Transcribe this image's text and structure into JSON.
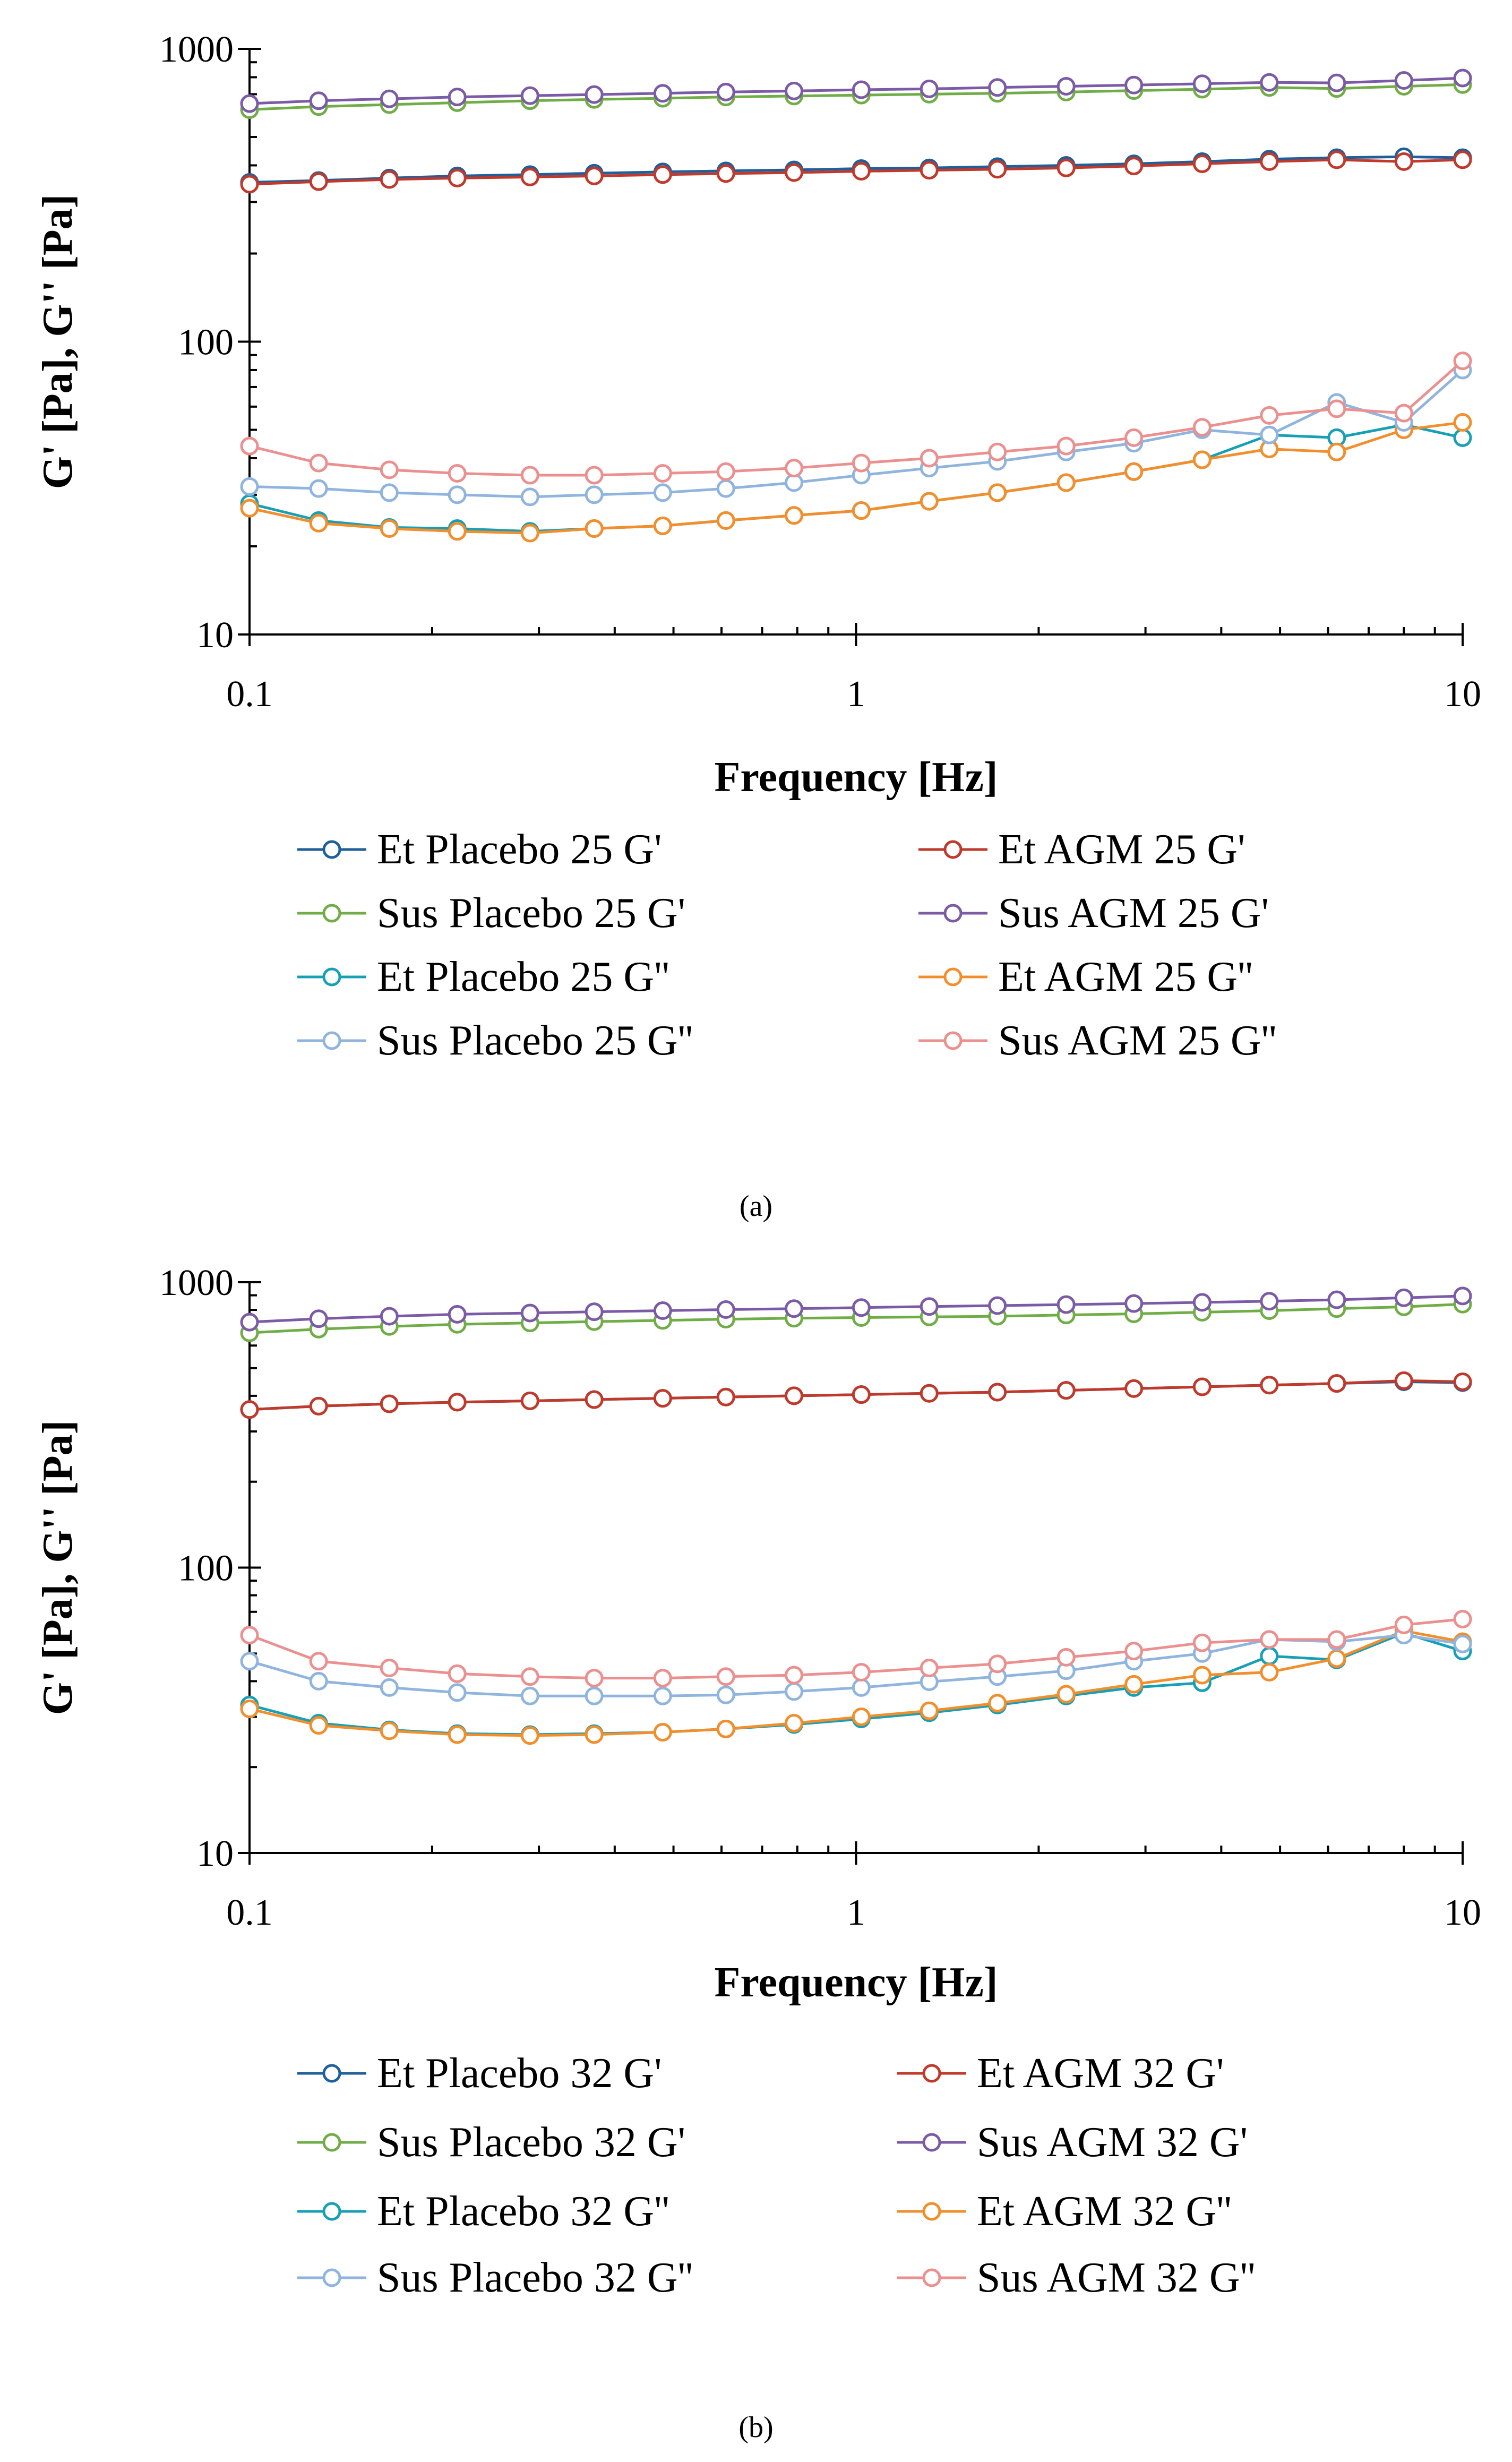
{
  "chart_data": [
    {
      "type": "line",
      "panel": "a",
      "caption": "(a)",
      "xlabel": "Frequency [Hz]",
      "ylabel": "G' [Pa], G'' [Pa]",
      "xscale": "log",
      "yscale": "log",
      "xlim": [
        0.1,
        10
      ],
      "ylim": [
        10,
        1000
      ],
      "xticks": [
        0.1,
        1,
        10
      ],
      "xtick_labels": [
        "0.1",
        "1",
        "10"
      ],
      "yticks": [
        10,
        100,
        1000
      ],
      "ytick_labels": [
        "10",
        "100",
        "1000"
      ],
      "grid": false,
      "legend_position": "bottom",
      "x": [
        0.1,
        0.13,
        0.17,
        0.22,
        0.29,
        0.37,
        0.48,
        0.61,
        0.79,
        1.02,
        1.32,
        1.71,
        2.22,
        2.87,
        3.72,
        4.8,
        6.2,
        8.0,
        10.0
      ],
      "series": [
        {
          "name": "Et Placebo 25 G'",
          "color": "#1f5f9a",
          "values": [
            350,
            355,
            362,
            368,
            372,
            376,
            380,
            383,
            386,
            390,
            392,
            396,
            400,
            405,
            412,
            420,
            425,
            428,
            425
          ]
        },
        {
          "name": "Et AGM 25 G'",
          "color": "#c0392b",
          "values": [
            345,
            352,
            358,
            362,
            365,
            368,
            372,
            375,
            378,
            382,
            385,
            388,
            392,
            398,
            405,
            412,
            418,
            412,
            418
          ]
        },
        {
          "name": "Sus Placebo 25 G'",
          "color": "#70ad47",
          "values": [
            620,
            635,
            645,
            655,
            665,
            672,
            678,
            685,
            690,
            695,
            700,
            705,
            712,
            720,
            728,
            738,
            732,
            745,
            755
          ]
        },
        {
          "name": "Sus AGM 25 G'",
          "color": "#7b5aa6",
          "values": [
            650,
            665,
            675,
            685,
            692,
            698,
            705,
            712,
            718,
            725,
            730,
            738,
            745,
            752,
            760,
            768,
            765,
            780,
            795
          ]
        },
        {
          "name": "Et Placebo 25 G''",
          "color": "#17a0b5",
          "values": [
            28,
            24.5,
            23.2,
            23.0,
            22.5,
            23.0,
            23.5,
            24.5,
            25.5,
            26.5,
            28.5,
            30.5,
            33,
            36,
            39.5,
            48,
            47,
            52,
            47
          ]
        },
        {
          "name": "Et AGM 25 G''",
          "color": "#f28e2b",
          "values": [
            27,
            24,
            23,
            22.5,
            22.2,
            23.0,
            23.5,
            24.5,
            25.5,
            26.5,
            28.5,
            30.5,
            33,
            36,
            39.5,
            43,
            42,
            50,
            53
          ]
        },
        {
          "name": "Sus Placebo 25 G''",
          "color": "#8fb4de",
          "values": [
            32,
            31.5,
            30.5,
            30,
            29.5,
            30,
            30.5,
            31.5,
            33,
            35,
            37,
            39,
            42,
            45,
            50,
            48,
            62,
            53,
            80
          ]
        },
        {
          "name": "Sus AGM 25 G''",
          "color": "#eb8f8f",
          "values": [
            44,
            38.5,
            36.5,
            35.5,
            35,
            35,
            35.5,
            36,
            37,
            38.5,
            40,
            42,
            44,
            47,
            51,
            56,
            59,
            57,
            86
          ]
        }
      ]
    },
    {
      "type": "line",
      "panel": "b",
      "caption": "(b)",
      "xlabel": "Frequency [Hz]",
      "ylabel": "G' [Pa], G'' [Pa]",
      "xscale": "log",
      "yscale": "log",
      "xlim": [
        0.1,
        10
      ],
      "ylim": [
        10,
        1000
      ],
      "xticks": [
        0.1,
        1,
        10
      ],
      "xtick_labels": [
        "0.1",
        "1",
        "10"
      ],
      "yticks": [
        10,
        100,
        1000
      ],
      "ytick_labels": [
        "10",
        "100",
        "1000"
      ],
      "grid": false,
      "legend_position": "bottom",
      "x": [
        0.1,
        0.13,
        0.17,
        0.22,
        0.29,
        0.37,
        0.48,
        0.61,
        0.79,
        1.02,
        1.32,
        1.71,
        2.22,
        2.87,
        3.72,
        4.8,
        6.2,
        8.0,
        10.0
      ],
      "series": [
        {
          "name": "Et Placebo 32 G'",
          "color": "#1f5f9a",
          "values": [
            358,
            368,
            375,
            380,
            384,
            388,
            392,
            396,
            400,
            404,
            408,
            412,
            418,
            424,
            430,
            436,
            442,
            448,
            445
          ]
        },
        {
          "name": "Et AGM 32 G'",
          "color": "#c0392b",
          "values": [
            358,
            368,
            375,
            380,
            384,
            388,
            392,
            396,
            400,
            404,
            408,
            412,
            418,
            424,
            430,
            436,
            442,
            452,
            448
          ]
        },
        {
          "name": "Sus Placebo 32 G'",
          "color": "#70ad47",
          "values": [
            665,
            685,
            700,
            712,
            720,
            728,
            735,
            742,
            748,
            752,
            756,
            760,
            768,
            775,
            785,
            795,
            808,
            820,
            838
          ]
        },
        {
          "name": "Sus AGM 32 G'",
          "color": "#7b5aa6",
          "values": [
            725,
            745,
            760,
            772,
            780,
            788,
            795,
            802,
            808,
            815,
            822,
            828,
            835,
            842,
            850,
            858,
            868,
            882,
            895
          ]
        },
        {
          "name": "Et Placebo 32 G''",
          "color": "#17a0b5",
          "values": [
            33,
            28.5,
            27,
            26.2,
            26,
            26.2,
            26.5,
            27.2,
            28.2,
            29.5,
            31,
            33,
            35.5,
            38,
            39.5,
            49,
            47.5,
            59,
            51
          ]
        },
        {
          "name": "Et AGM 32 G''",
          "color": "#f28e2b",
          "values": [
            32,
            28,
            26.8,
            26,
            25.8,
            26,
            26.5,
            27.2,
            28.5,
            30,
            31.5,
            33.5,
            36,
            39,
            42,
            43,
            48,
            60,
            55
          ]
        },
        {
          "name": "Sus Placebo 32 G''",
          "color": "#8fb4de",
          "values": [
            47,
            40,
            38,
            36.5,
            35.5,
            35.5,
            35.5,
            35.8,
            36.8,
            38,
            39.8,
            41.5,
            43.5,
            47,
            50,
            56,
            55,
            58,
            54
          ]
        },
        {
          "name": "Sus AGM 32 G''",
          "color": "#eb8f8f",
          "values": [
            58,
            47,
            44.5,
            42.5,
            41.5,
            41,
            41,
            41.5,
            42,
            43,
            44.5,
            46,
            48.5,
            51,
            54.5,
            56,
            56,
            63,
            66
          ]
        }
      ]
    }
  ]
}
